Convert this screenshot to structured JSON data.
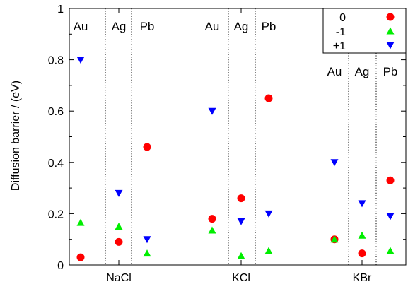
{
  "chart_data": {
    "type": "scatter",
    "title": "",
    "xlabel": "",
    "ylabel": "Diffusion barrier / (eV)",
    "ylim": [
      0,
      1
    ],
    "yticks": [
      "0",
      "0.2",
      "0.4",
      "0.6",
      "0.8",
      "1"
    ],
    "yticks_values": [
      0,
      0.2,
      0.4,
      0.6,
      0.8,
      1
    ],
    "grid": false,
    "legend_position": "top-right",
    "substrates": [
      {
        "name": "NaCl",
        "metals": [
          "Au",
          "Ag",
          "Pb"
        ]
      },
      {
        "name": "KCl",
        "metals": [
          "Au",
          "Ag",
          "Pb"
        ]
      },
      {
        "name": "KBr",
        "metals": [
          "Au",
          "Ag",
          "Pb"
        ]
      }
    ],
    "series": [
      {
        "name": "0",
        "marker": "circle",
        "color": "#ff0000",
        "points": [
          {
            "substrate": "NaCl",
            "metal": "Au",
            "value": 0.03
          },
          {
            "substrate": "NaCl",
            "metal": "Ag",
            "value": 0.09
          },
          {
            "substrate": "NaCl",
            "metal": "Pb",
            "value": 0.46
          },
          {
            "substrate": "KCl",
            "metal": "Au",
            "value": 0.18
          },
          {
            "substrate": "KCl",
            "metal": "Ag",
            "value": 0.26
          },
          {
            "substrate": "KCl",
            "metal": "Pb",
            "value": 0.65
          },
          {
            "substrate": "KBr",
            "metal": "Au",
            "value": 0.1
          },
          {
            "substrate": "KBr",
            "metal": "Ag",
            "value": 0.045
          },
          {
            "substrate": "KBr",
            "metal": "Pb",
            "value": 0.33
          }
        ]
      },
      {
        "name": "-1",
        "marker": "triangle-up",
        "color": "#00ee00",
        "points": [
          {
            "substrate": "NaCl",
            "metal": "Au",
            "value": 0.165
          },
          {
            "substrate": "NaCl",
            "metal": "Ag",
            "value": 0.15
          },
          {
            "substrate": "NaCl",
            "metal": "Pb",
            "value": 0.045
          },
          {
            "substrate": "KCl",
            "metal": "Au",
            "value": 0.135
          },
          {
            "substrate": "KCl",
            "metal": "Ag",
            "value": 0.035
          },
          {
            "substrate": "KCl",
            "metal": "Pb",
            "value": 0.055
          },
          {
            "substrate": "KBr",
            "metal": "Au",
            "value": 0.1
          },
          {
            "substrate": "KBr",
            "metal": "Ag",
            "value": 0.115
          },
          {
            "substrate": "KBr",
            "metal": "Pb",
            "value": 0.055
          }
        ]
      },
      {
        "name": "+1",
        "marker": "triangle-down",
        "color": "#0000ff",
        "points": [
          {
            "substrate": "NaCl",
            "metal": "Au",
            "value": 0.8
          },
          {
            "substrate": "NaCl",
            "metal": "Ag",
            "value": 0.28
          },
          {
            "substrate": "NaCl",
            "metal": "Pb",
            "value": 0.1
          },
          {
            "substrate": "KCl",
            "metal": "Au",
            "value": 0.6
          },
          {
            "substrate": "KCl",
            "metal": "Ag",
            "value": 0.17
          },
          {
            "substrate": "KCl",
            "metal": "Pb",
            "value": 0.2
          },
          {
            "substrate": "KBr",
            "metal": "Au",
            "value": 0.4
          },
          {
            "substrate": "KBr",
            "metal": "Ag",
            "value": 0.24
          },
          {
            "substrate": "KBr",
            "metal": "Pb",
            "value": 0.19
          }
        ]
      }
    ]
  }
}
